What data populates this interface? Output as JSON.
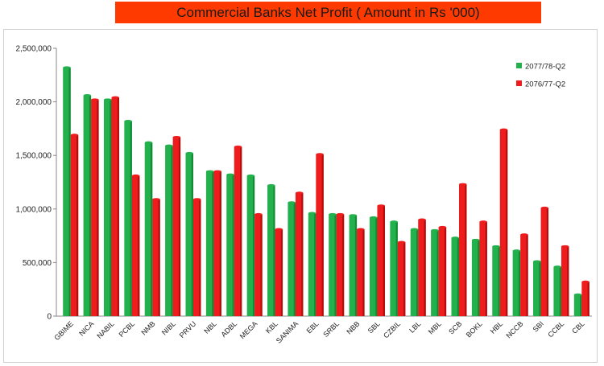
{
  "header": {
    "title": "Commercial Banks Net Profit ( Amount in Rs '000)"
  },
  "colors": {
    "banner": "#ff3a00",
    "series_2077": "#22b14c",
    "series_2076": "#ee1c1c"
  },
  "chart_data": {
    "type": "bar",
    "title": "Commercial Banks Net Profit ( Amount in Rs '000)",
    "xlabel": "",
    "ylabel": "",
    "ylim": [
      0,
      2500000
    ],
    "y_ticks": [
      "0",
      "500,000",
      "1,000,000",
      "1,500,000",
      "2,000,000",
      "2,500,000"
    ],
    "y_tick_values": [
      0,
      500000,
      1000000,
      1500000,
      2000000,
      2500000
    ],
    "grid": false,
    "legend": "top-right",
    "categories": [
      "GBIME",
      "NICA",
      "NABIL",
      "PCBL",
      "NMB",
      "NIBL",
      "PRVU",
      "NBL",
      "ADBL",
      "MEGA",
      "KBL",
      "SANIMA",
      "EBL",
      "SRBL",
      "NBB",
      "SBL",
      "CZBIL",
      "LBL",
      "MBL",
      "SCB",
      "BOKL",
      "HBL",
      "NCCB",
      "SBI",
      "CCBL",
      "CBL"
    ],
    "series": [
      {
        "name": "2077/78-Q2",
        "values": [
          2320000,
          2060000,
          2020000,
          1820000,
          1620000,
          1590000,
          1520000,
          1350000,
          1320000,
          1310000,
          1220000,
          1060000,
          960000,
          950000,
          940000,
          920000,
          880000,
          810000,
          800000,
          730000,
          710000,
          650000,
          610000,
          510000,
          460000,
          200000
        ]
      },
      {
        "name": "2076/77-Q2",
        "values": [
          1690000,
          2020000,
          2040000,
          1310000,
          1090000,
          1670000,
          1090000,
          1350000,
          1580000,
          950000,
          810000,
          1150000,
          1510000,
          950000,
          810000,
          1030000,
          690000,
          900000,
          830000,
          1230000,
          880000,
          1740000,
          760000,
          1010000,
          650000,
          320000
        ]
      }
    ]
  }
}
